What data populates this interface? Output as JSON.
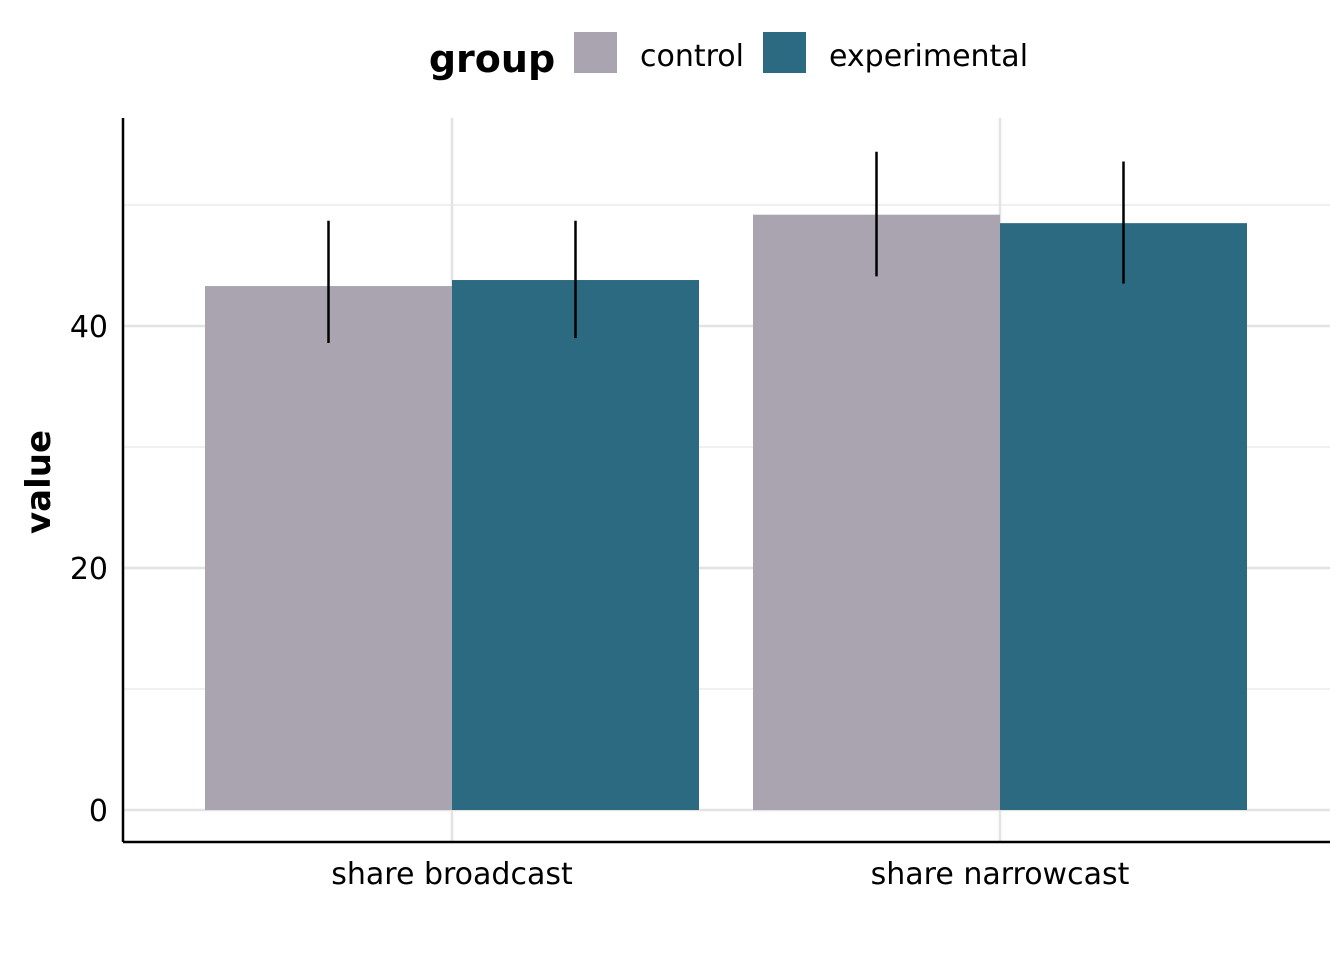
{
  "chart_data": {
    "type": "bar",
    "categories": [
      "share broadcast",
      "share narrowcast"
    ],
    "series": [
      {
        "name": "control",
        "color": "#a9a4b0",
        "values": [
          43.3,
          49.2
        ],
        "error_low": [
          38.6,
          44.1
        ],
        "error_high": [
          48.7,
          54.4
        ]
      },
      {
        "name": "experimental",
        "color": "#2c6a82",
        "values": [
          43.8,
          48.5
        ],
        "error_low": [
          39.0,
          43.5
        ],
        "error_high": [
          48.7,
          53.6
        ]
      }
    ],
    "title": "",
    "xlabel": "",
    "ylabel": "value",
    "ylim": [
      0,
      56.9
    ],
    "yticks": [
      0,
      20,
      40
    ],
    "ytick_labels": [
      "0",
      "20",
      "40"
    ],
    "y_minor_gridlines": [
      10,
      30,
      50
    ],
    "grid": true,
    "legend": {
      "title": "group",
      "position": "top"
    }
  }
}
